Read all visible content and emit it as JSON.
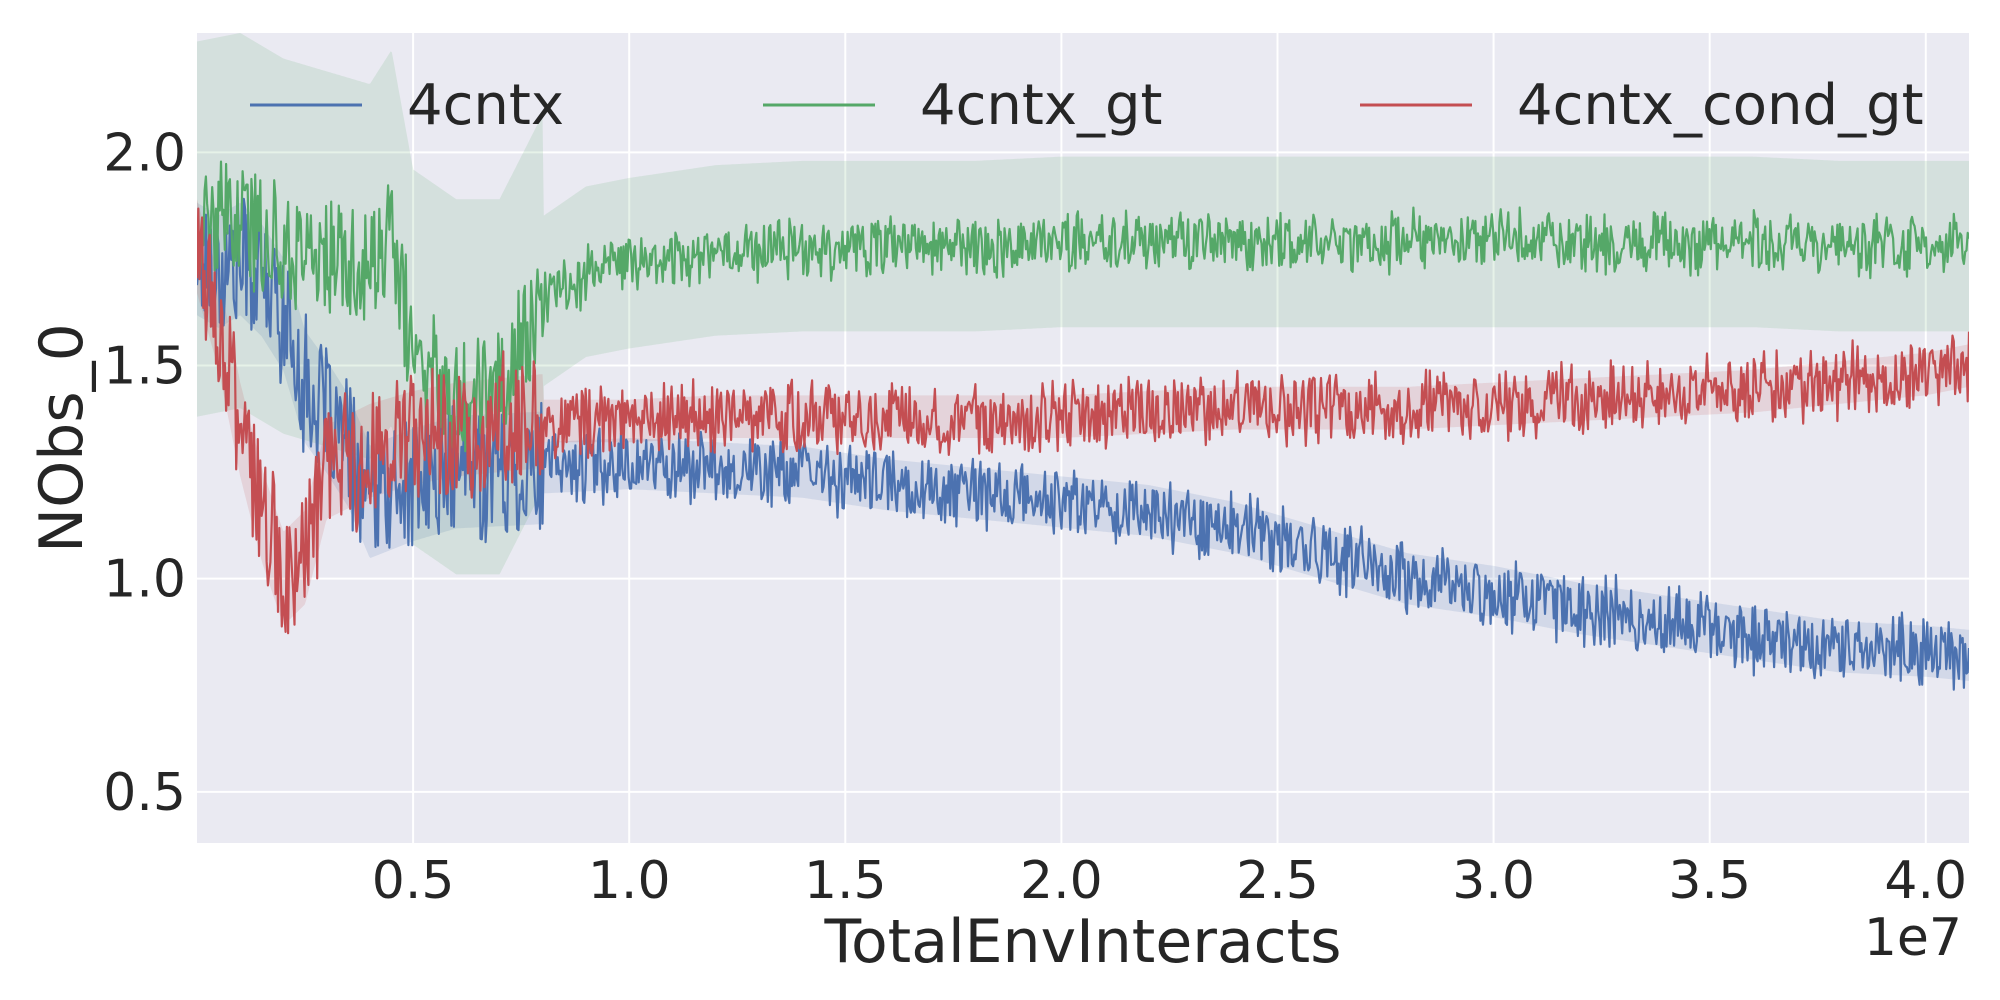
{
  "chart_data": {
    "type": "line",
    "title": "",
    "xlabel": "TotalEnvInteracts",
    "ylabel": "NObs_0",
    "x_offset_label": "1e7",
    "xlim": [
      0.0,
      4.1
    ],
    "ylim": [
      0.38,
      2.28
    ],
    "x_ticks": [
      0.5,
      1.0,
      1.5,
      2.0,
      2.5,
      3.0,
      3.5,
      4.0
    ],
    "x_tick_labels": [
      "0.5",
      "1.0",
      "1.5",
      "2.0",
      "2.5",
      "3.0",
      "3.5",
      "4.0"
    ],
    "y_ticks": [
      0.5,
      1.0,
      1.5,
      2.0
    ],
    "y_tick_labels": [
      "0.5",
      "1.0",
      "1.5",
      "2.0"
    ],
    "grid": true,
    "legend_position": "top",
    "background_color": "#eaeaf2",
    "series": [
      {
        "name": "4cntx",
        "color": "#4c72b0",
        "x": [
          0.0,
          0.05,
          0.1,
          0.15,
          0.2,
          0.25,
          0.3,
          0.35,
          0.4,
          0.5,
          0.6,
          0.8,
          1.0,
          1.2,
          1.4,
          1.6,
          1.8,
          2.0,
          2.2,
          2.4,
          2.6,
          2.8,
          3.0,
          3.2,
          3.4,
          3.6,
          3.8,
          4.0,
          4.1
        ],
        "y": [
          1.75,
          1.72,
          1.75,
          1.7,
          1.62,
          1.45,
          1.38,
          1.3,
          1.18,
          1.22,
          1.25,
          1.26,
          1.27,
          1.26,
          1.25,
          1.22,
          1.2,
          1.18,
          1.16,
          1.12,
          1.06,
          1.0,
          0.97,
          0.93,
          0.9,
          0.87,
          0.84,
          0.83,
          0.82
        ],
        "noise": 0.07,
        "band": 0.06
      },
      {
        "name": "4cntx_gt",
        "color": "#55a868",
        "x": [
          0.0,
          0.1,
          0.2,
          0.3,
          0.4,
          0.45,
          0.5,
          0.6,
          0.7,
          0.8,
          0.9,
          1.0,
          1.2,
          1.4,
          1.6,
          1.8,
          2.0,
          2.2,
          2.4,
          2.6,
          2.8,
          3.0,
          3.2,
          3.4,
          3.6,
          3.8,
          4.0,
          4.1
        ],
        "y": [
          1.82,
          1.84,
          1.78,
          1.75,
          1.72,
          1.8,
          1.52,
          1.45,
          1.45,
          1.65,
          1.72,
          1.74,
          1.77,
          1.78,
          1.78,
          1.78,
          1.79,
          1.79,
          1.79,
          1.79,
          1.79,
          1.79,
          1.79,
          1.79,
          1.79,
          1.78,
          1.78,
          1.78
        ],
        "noise": 0.06,
        "band": 0.2
      },
      {
        "name": "4cntx_cond_gt",
        "color": "#c44e52",
        "x": [
          0.0,
          0.05,
          0.1,
          0.15,
          0.2,
          0.25,
          0.3,
          0.4,
          0.5,
          0.6,
          0.8,
          1.0,
          1.2,
          1.4,
          1.6,
          1.8,
          2.0,
          2.2,
          2.4,
          2.6,
          2.8,
          3.0,
          3.2,
          3.4,
          3.6,
          3.8,
          4.0,
          4.1
        ],
        "y": [
          1.78,
          1.6,
          1.35,
          1.15,
          1.0,
          1.05,
          1.25,
          1.3,
          1.33,
          1.35,
          1.37,
          1.37,
          1.38,
          1.38,
          1.38,
          1.38,
          1.38,
          1.39,
          1.4,
          1.4,
          1.4,
          1.41,
          1.42,
          1.43,
          1.44,
          1.46,
          1.48,
          1.5
        ],
        "noise": 0.07,
        "band": 0.05
      }
    ]
  }
}
